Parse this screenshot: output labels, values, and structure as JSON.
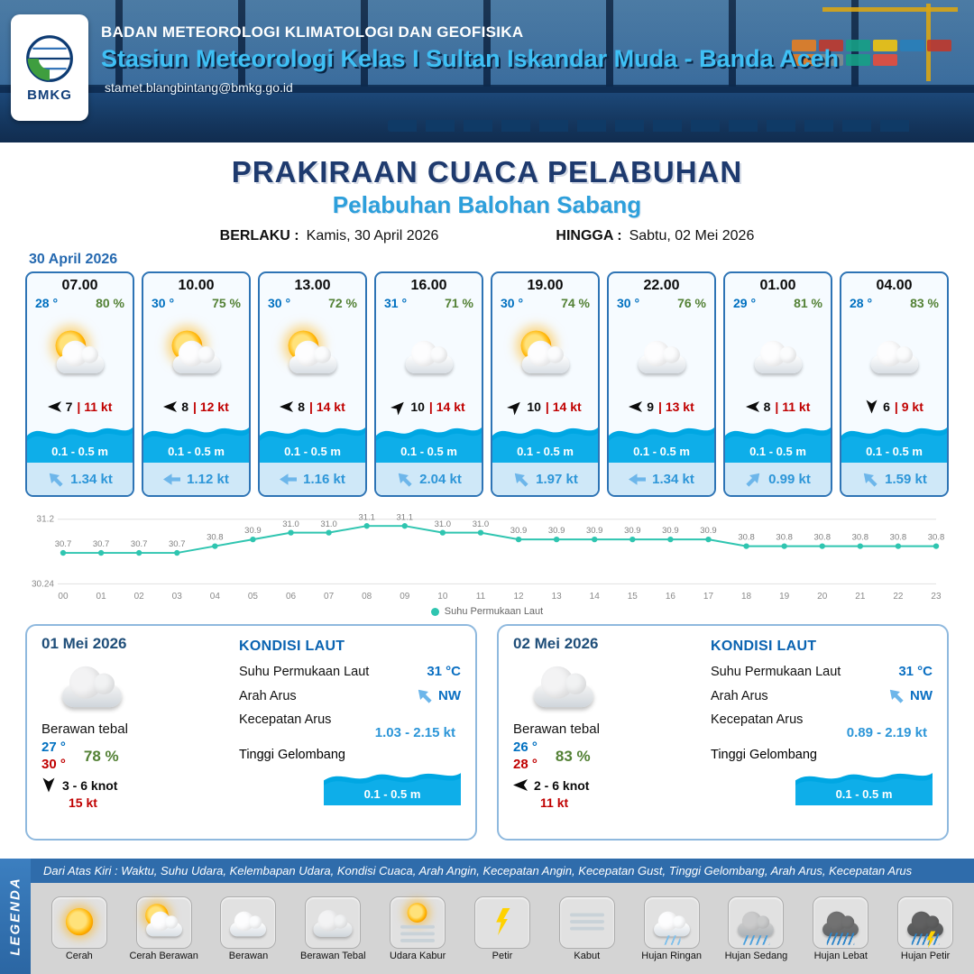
{
  "header": {
    "logo_text": "BMKG",
    "agency": "BADAN METEOROLOGI KLIMATOLOGI DAN GEOFISIKA",
    "station": "Stasiun Meteorologi Kelas I Sultan Iskandar Muda - Banda Aceh",
    "email": "stamet.blangbintang@bmkg.go.id"
  },
  "title": {
    "main": "PRAKIRAAN CUACA PELABUHAN",
    "subtitle": "Pelabuhan Balohan Sabang",
    "valid_label": "BERLAKU :",
    "valid_value": "Kamis, 30 April 2026",
    "until_label": "HINGGA :",
    "until_value": "Sabtu, 02 Mei 2026"
  },
  "forecast_date": "30 April 2026",
  "hourly": [
    {
      "time": "07.00",
      "temp": "28 °",
      "humidity": "80 %",
      "icon": "cerah-berawan",
      "wind_dir": "W",
      "wind_speed": "7",
      "gust": "11 kt",
      "wave": "0.1 - 0.5 m",
      "current_dir": "NW",
      "current": "1.34 kt"
    },
    {
      "time": "10.00",
      "temp": "30 °",
      "humidity": "75 %",
      "icon": "cerah-berawan",
      "wind_dir": "W",
      "wind_speed": "8",
      "gust": "12 kt",
      "wave": "0.1 - 0.5 m",
      "current_dir": "W",
      "current": "1.12 kt"
    },
    {
      "time": "13.00",
      "temp": "30 °",
      "humidity": "72 %",
      "icon": "cerah-berawan",
      "wind_dir": "W",
      "wind_speed": "8",
      "gust": "14 kt",
      "wave": "0.1 - 0.5 m",
      "current_dir": "W",
      "current": "1.16 kt"
    },
    {
      "time": "16.00",
      "temp": "31 °",
      "humidity": "71 %",
      "icon": "berawan",
      "wind_dir": "NE",
      "wind_speed": "10",
      "gust": "14 kt",
      "wave": "0.1 - 0.5 m",
      "current_dir": "NW",
      "current": "2.04 kt"
    },
    {
      "time": "19.00",
      "temp": "30 °",
      "humidity": "74 %",
      "icon": "cerah-berawan",
      "wind_dir": "NE",
      "wind_speed": "10",
      "gust": "14 kt",
      "wave": "0.1 - 0.5 m",
      "current_dir": "NW",
      "current": "1.97 kt"
    },
    {
      "time": "22.00",
      "temp": "30 °",
      "humidity": "76 %",
      "icon": "berawan",
      "wind_dir": "W",
      "wind_speed": "9",
      "gust": "13 kt",
      "wave": "0.1 - 0.5 m",
      "current_dir": "W",
      "current": "1.34 kt"
    },
    {
      "time": "01.00",
      "temp": "29 °",
      "humidity": "81 %",
      "icon": "berawan",
      "wind_dir": "W",
      "wind_speed": "8",
      "gust": "11 kt",
      "wave": "0.1 - 0.5 m",
      "current_dir": "NE",
      "current": "0.99 kt"
    },
    {
      "time": "04.00",
      "temp": "28 °",
      "humidity": "83 %",
      "icon": "berawan",
      "wind_dir": "S",
      "wind_speed": "6",
      "gust": "9 kt",
      "wave": "0.1 - 0.5 m",
      "current_dir": "NW",
      "current": "1.59 kt"
    }
  ],
  "chart_data": {
    "type": "line",
    "title": "",
    "series_name": "Suhu Permukaan Laut",
    "x": [
      "00",
      "01",
      "02",
      "03",
      "04",
      "05",
      "06",
      "07",
      "08",
      "09",
      "10",
      "11",
      "12",
      "13",
      "14",
      "15",
      "16",
      "17",
      "18",
      "19",
      "20",
      "21",
      "22",
      "23"
    ],
    "values": [
      30.7,
      30.7,
      30.7,
      30.7,
      30.8,
      30.9,
      31.0,
      31.0,
      31.1,
      31.1,
      31.0,
      31.0,
      30.9,
      30.9,
      30.9,
      30.9,
      30.9,
      30.9,
      30.8,
      30.8,
      30.8,
      30.8,
      30.8,
      30.8
    ],
    "ylim": [
      30.24,
      31.2
    ],
    "line_color": "#2fc5b0",
    "grid": true,
    "legend_position": "bottom"
  },
  "daily": [
    {
      "date": "01 Mei 2026",
      "icon": "berawan-tebal",
      "condition": "Berawan tebal",
      "temp_min": "27 °",
      "temp_max": "30 °",
      "humidity": "78 %",
      "wind_dir": "S",
      "wind_range": "3 - 6 knot",
      "gust": "15 kt",
      "sea": {
        "title": "KONDISI LAUT",
        "sst_label": "Suhu Permukaan Laut",
        "sst": "31 °C",
        "current_dir_label": "Arah Arus",
        "current_dir": "NW",
        "current_dir_text": "NW",
        "current_speed_label": "Kecepatan Arus",
        "current_speed": "1.03 - 2.15 kt",
        "wave_label": "Tinggi Gelombang",
        "wave": "0.1 - 0.5 m"
      }
    },
    {
      "date": "02 Mei 2026",
      "icon": "berawan-tebal",
      "condition": "Berawan tebal",
      "temp_min": "26 °",
      "temp_max": "28 °",
      "humidity": "83 %",
      "wind_dir": "W",
      "wind_range": "2 - 6 knot",
      "gust": "11 kt",
      "sea": {
        "title": "KONDISI LAUT",
        "sst_label": "Suhu Permukaan Laut",
        "sst": "31 °C",
        "current_dir_label": "Arah Arus",
        "current_dir": "NW",
        "current_dir_text": "NW",
        "current_speed_label": "Kecepatan Arus",
        "current_speed": "0.89 - 2.19 kt",
        "wave_label": "Tinggi Gelombang",
        "wave": "0.1 - 0.5 m"
      }
    }
  ],
  "legend": {
    "title": "LEGENDA",
    "description": "Dari Atas Kiri : Waktu, Suhu Udara, Kelembapan Udara, Kondisi Cuaca, Arah Angin, Kecepatan Angin, Kecepatan Gust, Tinggi Gelombang, Arah Arus, Kecepatan Arus",
    "items": [
      {
        "icon": "cerah",
        "label": "Cerah"
      },
      {
        "icon": "cerah-berawan",
        "label": "Cerah Berawan"
      },
      {
        "icon": "berawan",
        "label": "Berawan"
      },
      {
        "icon": "berawan-tebal",
        "label": "Berawan Tebal"
      },
      {
        "icon": "udara-kabur",
        "label": "Udara Kabur"
      },
      {
        "icon": "petir",
        "label": "Petir"
      },
      {
        "icon": "kabut",
        "label": "Kabut"
      },
      {
        "icon": "hujan-ringan",
        "label": "Hujan Ringan"
      },
      {
        "icon": "hujan-sedang",
        "label": "Hujan Sedang"
      },
      {
        "icon": "hujan-lebat",
        "label": "Hujan Lebat"
      },
      {
        "icon": "hujan-petir",
        "label": "Hujan Petir"
      }
    ]
  }
}
